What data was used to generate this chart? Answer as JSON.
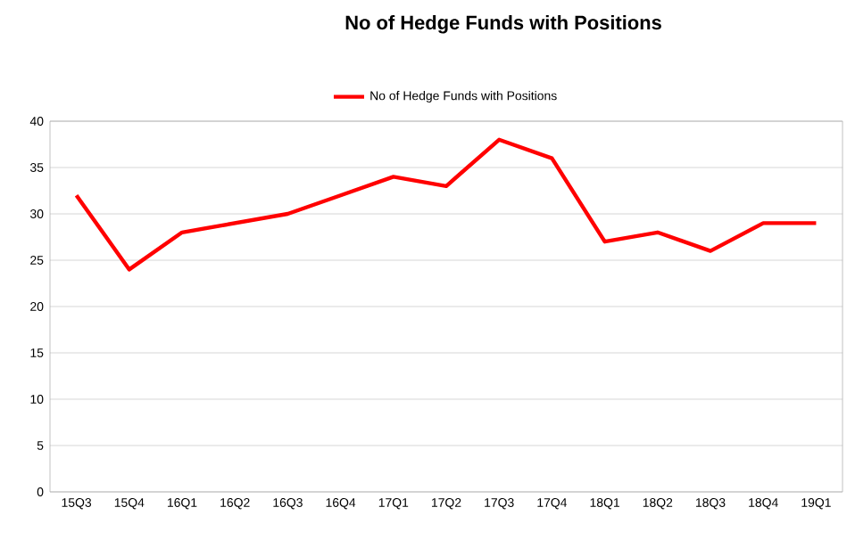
{
  "chart_data": {
    "type": "line",
    "title": "No of Hedge Funds with Positions",
    "categories": [
      "15Q3",
      "15Q4",
      "16Q1",
      "16Q2",
      "16Q3",
      "16Q4",
      "17Q1",
      "17Q2",
      "17Q3",
      "17Q4",
      "18Q1",
      "18Q2",
      "18Q3",
      "18Q4",
      "19Q1"
    ],
    "series": [
      {
        "name": "No of Hedge Funds with Positions",
        "color": "#ff0000",
        "values": [
          32,
          24,
          28,
          29,
          30,
          32,
          34,
          33,
          38,
          36,
          27,
          28,
          26,
          29,
          29
        ]
      }
    ],
    "ylim": [
      0,
      40
    ],
    "yticks": [
      0,
      5,
      10,
      15,
      20,
      25,
      30,
      35,
      40
    ],
    "grid": "y",
    "legend": "top",
    "marker": "none",
    "line_style": "solid"
  }
}
